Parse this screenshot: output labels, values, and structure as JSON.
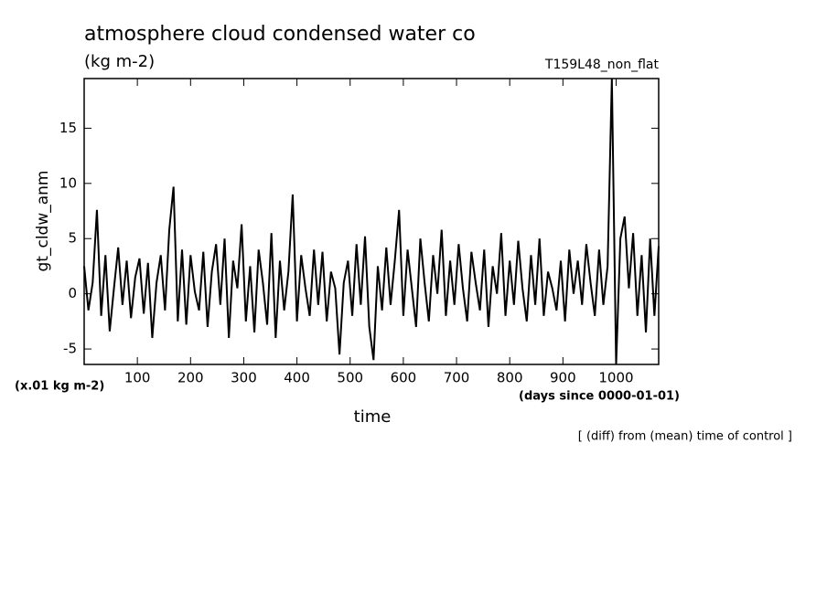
{
  "chart_data": {
    "type": "line",
    "title": "atmosphere cloud condensed water co",
    "subtitle": "(kg m-2)",
    "run_label": "T159L48_non_flat",
    "y_label": "gt_cldw_anm",
    "y_unit": "(x.01 kg m-2)",
    "x_label": "time",
    "x_unit": "(days since 0000-01-01)",
    "annotation": "[ (diff) from (mean) time of control ]",
    "xlim": [
      0,
      1080
    ],
    "ylim": [
      -6.4,
      19.5
    ],
    "xticks": [
      100,
      200,
      300,
      400,
      500,
      600,
      700,
      800,
      900,
      1000
    ],
    "yticks": [
      -5,
      0,
      5,
      10,
      15
    ],
    "grid": false,
    "series": [
      {
        "color": "#000000",
        "x": [
          0,
          8,
          16,
          24,
          32,
          40,
          48,
          56,
          64,
          72,
          80,
          88,
          96,
          104,
          112,
          120,
          128,
          136,
          144,
          152,
          160,
          168,
          176,
          184,
          192,
          200,
          208,
          216,
          224,
          232,
          240,
          248,
          256,
          264,
          272,
          280,
          288,
          296,
          304,
          312,
          320,
          328,
          336,
          344,
          352,
          360,
          368,
          376,
          384,
          392,
          400,
          408,
          416,
          424,
          432,
          440,
          448,
          456,
          464,
          472,
          480,
          488,
          496,
          504,
          512,
          520,
          528,
          536,
          544,
          552,
          560,
          568,
          576,
          584,
          592,
          600,
          608,
          616,
          624,
          632,
          640,
          648,
          656,
          664,
          672,
          680,
          688,
          696,
          704,
          712,
          720,
          728,
          736,
          744,
          752,
          760,
          768,
          776,
          784,
          792,
          800,
          808,
          816,
          824,
          832,
          840,
          848,
          856,
          864,
          872,
          880,
          888,
          896,
          904,
          912,
          920,
          928,
          936,
          944,
          952,
          960,
          968,
          976,
          984,
          992,
          1000,
          1008,
          1016,
          1024,
          1032,
          1040,
          1048,
          1056,
          1064,
          1072,
          1080
        ],
        "values": [
          2.5,
          -1.5,
          1.0,
          7.6,
          -2.0,
          3.5,
          -3.4,
          0.5,
          4.2,
          -1.0,
          3.0,
          -2.2,
          1.5,
          3.2,
          -1.8,
          2.8,
          -4.0,
          1.0,
          3.5,
          -1.5,
          5.8,
          9.7,
          -2.5,
          4.0,
          -2.8,
          3.5,
          0.2,
          -1.5,
          3.8,
          -3.0,
          2.0,
          4.5,
          -1.0,
          5.0,
          -4.0,
          3.0,
          0.5,
          6.3,
          -2.5,
          2.5,
          -3.5,
          4.0,
          1.0,
          -2.8,
          5.5,
          -4.0,
          3.0,
          -1.5,
          2.0,
          9.0,
          -2.5,
          3.5,
          0.5,
          -2.0,
          4.0,
          -1.0,
          3.8,
          -2.5,
          2.0,
          0.5,
          -5.5,
          1.0,
          3.0,
          -2.0,
          4.5,
          -1.0,
          5.2,
          -3.0,
          -6.0,
          2.5,
          -1.5,
          4.2,
          -1.0,
          3.0,
          7.6,
          -2.0,
          4.0,
          0.5,
          -3.0,
          5.0,
          1.0,
          -2.5,
          3.5,
          0.0,
          5.8,
          -2.0,
          3.0,
          -1.0,
          4.5,
          0.5,
          -2.5,
          3.8,
          1.0,
          -1.5,
          4.0,
          -3.0,
          2.5,
          0.0,
          5.5,
          -2.0,
          3.0,
          -1.0,
          4.8,
          0.5,
          -2.5,
          3.5,
          -1.0,
          5.0,
          -2.0,
          2.0,
          0.5,
          -1.5,
          3.0,
          -2.5,
          4.0,
          0.0,
          3.0,
          -1.0,
          4.5,
          1.0,
          -2.0,
          4.0,
          -1.0,
          2.5,
          19.5,
          -6.4,
          5.0,
          7.0,
          0.5,
          5.5,
          -2.0,
          3.5,
          -3.5,
          5.0,
          -2.0,
          4.3
        ]
      }
    ]
  }
}
